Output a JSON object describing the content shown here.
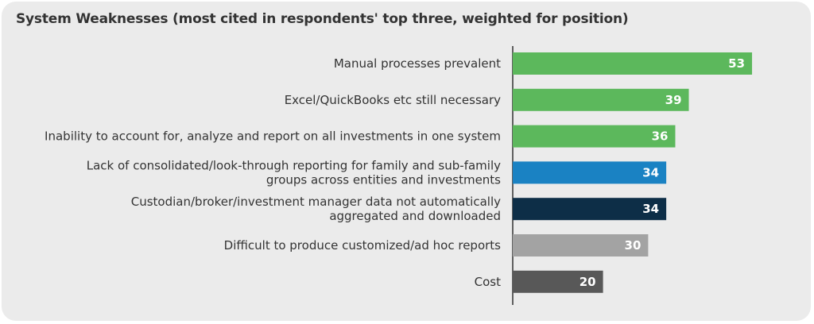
{
  "chart_data": {
    "type": "bar",
    "orientation": "horizontal",
    "title": "System Weaknesses (most cited in respondents' top three, weighted for position)",
    "categories": [
      "Manual processes prevalent",
      "Excel/QuickBooks etc still necessary",
      "Inability to account for, analyze and report on all investments in one system",
      "Lack of consolidated/look-through reporting for family and sub-family groups across entities and investments",
      "Custodian/broker/investment manager data not automatically aggregated and downloaded",
      "Difficult to produce customized/ad hoc reports",
      "Cost"
    ],
    "category_lines": [
      [
        "Manual processes prevalent"
      ],
      [
        "Excel/QuickBooks etc still necessary"
      ],
      [
        "Inability to account for, analyze and report on all investments in one system"
      ],
      [
        "Lack of consolidated/look-through reporting for family and sub-family",
        "groups across entities and investments"
      ],
      [
        "Custodian/broker/investment manager data not automatically",
        "aggregated and downloaded"
      ],
      [
        "Difficult to produce customized/ad hoc reports"
      ],
      [
        "Cost"
      ]
    ],
    "values": [
      53,
      39,
      36,
      34,
      34,
      30,
      20
    ],
    "value_labels": [
      "53",
      "39",
      "36",
      "34",
      "34",
      "30",
      "20"
    ],
    "bar_colors": [
      "#5cb85c",
      "#5cb85c",
      "#5cb85c",
      "#1a82c3",
      "#0d2e47",
      "#a3a3a3",
      "#585858"
    ],
    "xlim": [
      0,
      60
    ],
    "grid": false,
    "legend": "none"
  }
}
